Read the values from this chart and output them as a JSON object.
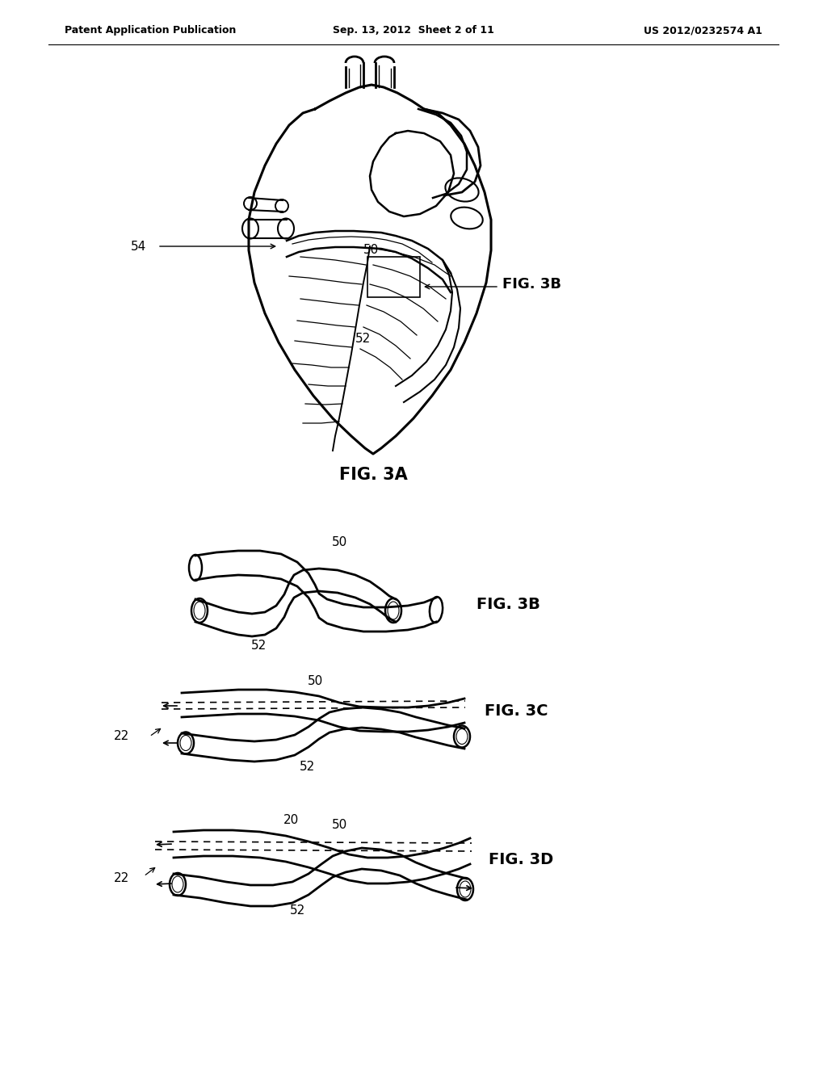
{
  "background_color": "#ffffff",
  "header_left": "Patent Application Publication",
  "header_center": "Sep. 13, 2012  Sheet 2 of 11",
  "header_right": "US 2012/0232574 A1",
  "fig3a_label": "FIG. 3A",
  "fig3b_label": "FIG. 3B",
  "fig3c_label": "FIG. 3C",
  "fig3d_label": "FIG. 3D",
  "label_50_3a": "50",
  "label_52_3a": "52",
  "label_54_3a": "54",
  "label_50_3b": "50",
  "label_52_3b": "52",
  "label_50_3c": "50",
  "label_52_3c": "52",
  "label_22_3c": "22",
  "label_20_3d": "20",
  "label_50_3d": "50",
  "label_52_3d": "52",
  "label_22_3d": "22",
  "fig3b_callout": "FIG. 3B",
  "line_color": "#000000",
  "text_color": "#000000",
  "header_fontsize": 9,
  "label_fontsize": 11,
  "fig_label_fontsize": 14
}
